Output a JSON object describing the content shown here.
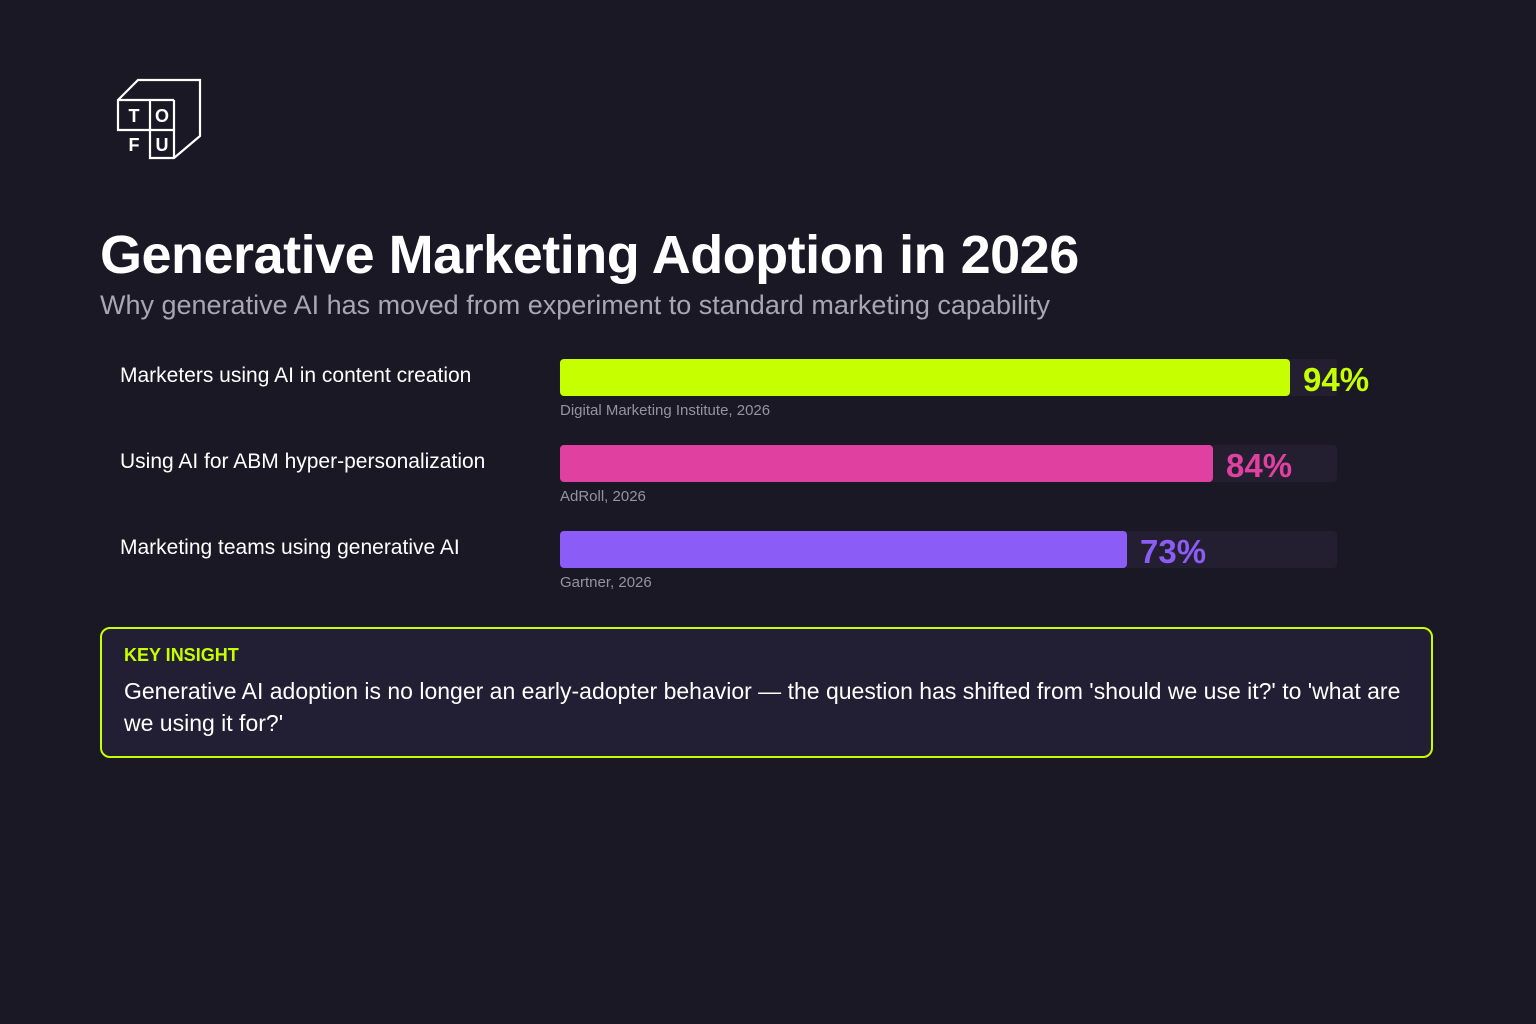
{
  "brand": {
    "logo_letters": [
      "T",
      "O",
      "F",
      "U"
    ]
  },
  "header": {
    "title": "Generative Marketing Adoption in 2026",
    "subtitle": "Why generative AI has moved from experiment to standard marketing capability"
  },
  "chart_data": {
    "type": "bar",
    "orientation": "horizontal",
    "categories": [
      "Marketers using AI in content creation",
      "Using AI for ABM hyper-personalization",
      "Marketing teams using generative AI"
    ],
    "values": [
      94,
      84,
      73
    ],
    "value_labels": [
      "94%",
      "84%",
      "73%"
    ],
    "sources": [
      "Digital Marketing Institute, 2026",
      "AdRoll, 2026",
      "Gartner, 2026"
    ],
    "colors": [
      "#c6ff00",
      "#e0409f",
      "#8b5cf6"
    ],
    "xlim": [
      0,
      100
    ],
    "unit": "%",
    "grid": false,
    "legend": "none"
  },
  "insight": {
    "label": "KEY INSIGHT",
    "text": "Generative AI adoption is no longer an early-adopter behavior — the question has shifted from 'should we use it?' to 'what are we using it for?'"
  }
}
